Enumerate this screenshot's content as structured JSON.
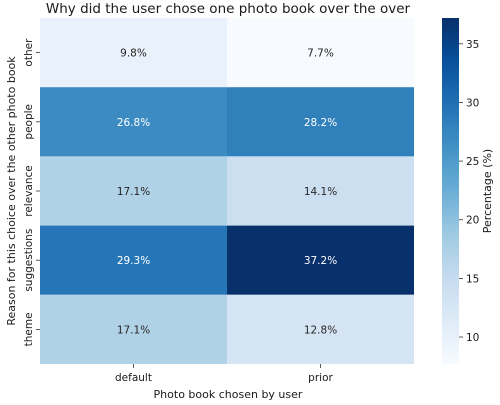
{
  "chart_data": {
    "type": "heatmap",
    "title": "Why did the user chose one photo book over the over",
    "xlabel": "Photo book chosen by user",
    "ylabel": "Reason for this choice over the other photo book",
    "x_categories": [
      "default",
      "prior"
    ],
    "y_categories": [
      "other",
      "people",
      "relevance",
      "suggestions",
      "theme"
    ],
    "values": [
      [
        9.8,
        7.7
      ],
      [
        26.8,
        28.2
      ],
      [
        17.1,
        14.1
      ],
      [
        29.3,
        37.2
      ],
      [
        17.1,
        12.8
      ]
    ],
    "cell_labels": [
      [
        "9.8%",
        "7.7%"
      ],
      [
        "26.8%",
        "28.2%"
      ],
      [
        "17.1%",
        "14.1%"
      ],
      [
        "29.3%",
        "37.2%"
      ],
      [
        "17.1%",
        "12.8%"
      ]
    ],
    "colorbar": {
      "label": "Percentage (%)",
      "range": [
        7.7,
        37.2
      ],
      "ticks": [
        10,
        15,
        20,
        25,
        30,
        35
      ],
      "colormap": "Blues"
    }
  }
}
